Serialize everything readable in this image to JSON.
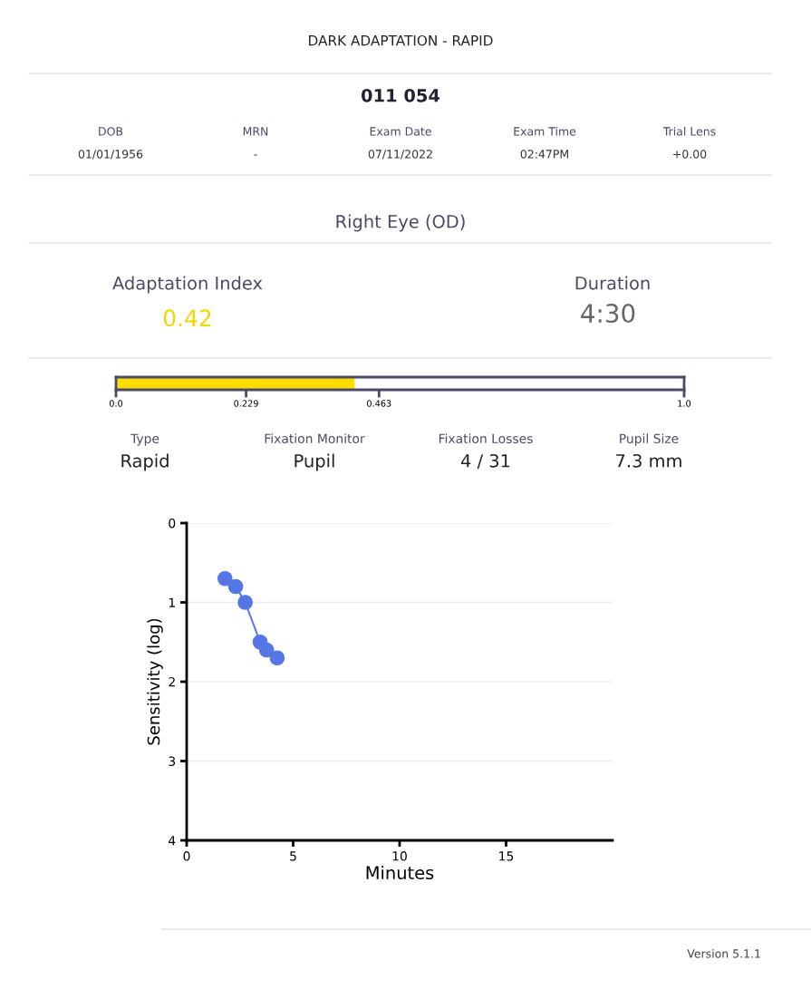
{
  "chart_data": [
    {
      "type": "other",
      "title": "DARK ADAPTATION - RAPID",
      "annotations": [
        "011 054",
        "DOB",
        "01/01/1956",
        "MRN",
        "-",
        "Exam Date",
        "07/11/2022",
        "Exam Time",
        "02:47PM",
        "Trial Lens",
        "+0.00",
        "Right Eye (OD)",
        "Adaptation Index",
        "0.42",
        "Duration",
        "4:30",
        "Type",
        "Rapid",
        "Fixation Monitor",
        "Pupil",
        "Fixation Losses",
        "4 / 31",
        "Pupil Size",
        "7.3 mm",
        "Version 5.1.1"
      ]
    },
    {
      "type": "bar",
      "orientation": "horizontal",
      "categories": [
        null
      ],
      "values": [
        0.42
      ],
      "color": "#ffdd00",
      "xlim": [
        0,
        1
      ],
      "xticks": [
        {
          "value": 0,
          "label": "0.0"
        },
        0.229,
        0.463,
        {
          "value": 1,
          "label": "1.0"
        }
      ],
      "tick_labels": "x"
    },
    {
      "type": "line",
      "xlabel": "Minutes",
      "ylabel": "Sensitivity (log)",
      "x": [
        1.8,
        2.3,
        2.75,
        3.45,
        3.75,
        4.25
      ],
      "values": [
        0.7,
        0.8,
        1.0,
        1.5,
        1.6,
        1.7
      ],
      "color": "#5577e6",
      "marker": "circle",
      "xlim": [
        0,
        20
      ],
      "xticks": [
        0,
        5,
        10,
        15
      ],
      "ylim": [
        4,
        0
      ],
      "yticks": [
        0,
        1,
        2,
        3,
        4
      ],
      "grid": "y"
    }
  ]
}
